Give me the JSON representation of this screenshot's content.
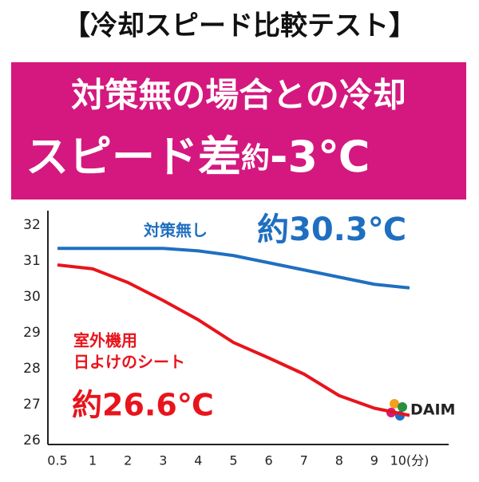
{
  "chart_data": {
    "type": "line",
    "title": "【冷却スピード比較テスト】",
    "subtitle": [
      "対策無の場合との冷却",
      "スピード差",
      "約",
      "-3℃"
    ],
    "categories": [
      "0.5",
      "1",
      "2",
      "3",
      "4",
      "5",
      "6",
      "7",
      "8",
      "9",
      "10(分)"
    ],
    "series": [
      {
        "name": "対策無し",
        "color": "#1f6fc0",
        "values": [
          31.35,
          31.35,
          31.35,
          31.35,
          31.28,
          31.15,
          30.95,
          30.75,
          30.55,
          30.35,
          30.25
        ]
      },
      {
        "name": "室外機用日よけのシート",
        "color": "#e8141c",
        "values": [
          30.89,
          30.78,
          30.4,
          29.9,
          29.36,
          28.73,
          28.3,
          27.85,
          27.25,
          26.9,
          26.7
        ]
      }
    ],
    "annotations": [
      {
        "text": "対策無し",
        "color": "#1f6fc0"
      },
      {
        "text": "約30.3℃",
        "color": "#1f6fc0"
      },
      {
        "text": "室外機用",
        "color": "#e8141c"
      },
      {
        "text": "日よけのシート",
        "color": "#e8141c"
      },
      {
        "text": "約26.6℃",
        "color": "#e8141c"
      }
    ],
    "ylim": [
      26,
      32.4
    ],
    "yticks": [
      26,
      27,
      28,
      29,
      30,
      31,
      32
    ],
    "logo": "DAIM"
  }
}
